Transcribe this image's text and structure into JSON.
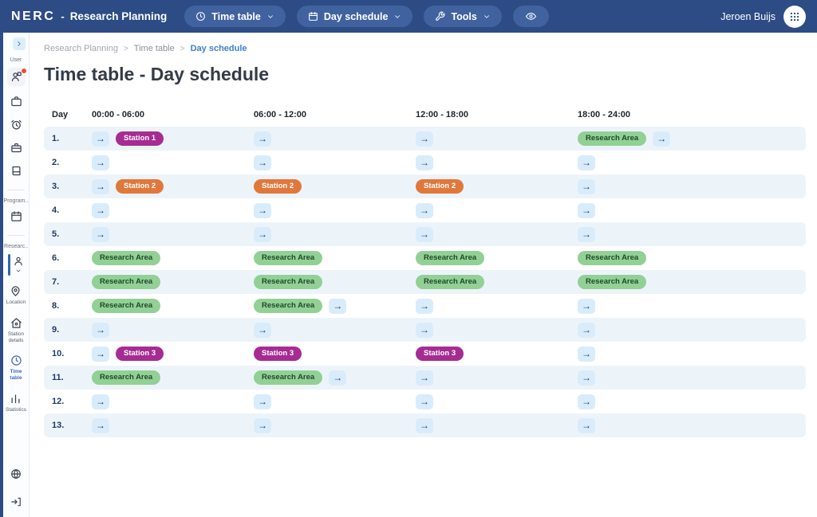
{
  "topbar": {
    "brand": "NERC",
    "brand_divider": "-",
    "app_title": "Research Planning",
    "menus": [
      {
        "label": "Time table",
        "icon": "clock"
      },
      {
        "label": "Day schedule",
        "icon": "calendar"
      },
      {
        "label": "Tools",
        "icon": "tools"
      }
    ],
    "eye_button_icon": "eye",
    "user_name": "Jeroen Buijs",
    "apps_icon": "grid"
  },
  "sidebar": {
    "collapse_icon": "chevron-right",
    "sections": [
      {
        "label": "User",
        "items": [
          {
            "icon": "user-card",
            "name": "user-planning",
            "notification": true,
            "highlight": true
          },
          {
            "icon": "briefcase",
            "name": "briefcase"
          },
          {
            "icon": "alarm",
            "name": "alarm"
          },
          {
            "icon": "kit",
            "name": "kit"
          },
          {
            "icon": "book",
            "name": "book"
          }
        ]
      },
      {
        "label": "Program..",
        "items": [
          {
            "icon": "calendar",
            "name": "program-calendar"
          }
        ]
      },
      {
        "label": "Researc..",
        "items": [
          {
            "icon": "person",
            "name": "research-selected",
            "selected": true
          },
          {
            "icon": "pin",
            "name": "location",
            "label": "Location"
          },
          {
            "icon": "home",
            "name": "station-details",
            "label": "Station details"
          },
          {
            "icon": "clock",
            "name": "time-table",
            "label": "Time table",
            "active": true
          },
          {
            "icon": "chart",
            "name": "statistics",
            "label": "Statistics"
          }
        ]
      }
    ],
    "footer": [
      {
        "icon": "globe",
        "name": "language"
      },
      {
        "icon": "logout",
        "name": "logout"
      }
    ]
  },
  "breadcrumb": [
    {
      "label": "Research Planning",
      "active": false
    },
    {
      "label": "Time table",
      "active": false
    },
    {
      "label": "Day schedule",
      "active": true
    }
  ],
  "breadcrumb_separator": ">",
  "page": {
    "title": "Time table - Day schedule"
  },
  "table": {
    "headers": [
      "Day",
      "00:00 - 06:00",
      "06:00 - 12:00",
      "12:00 - 18:00",
      "18:00 - 24:00"
    ],
    "arrow_glyph": "→",
    "badge_colors": {
      "station1": {
        "bg": "#a62c92",
        "text": "#ffffff"
      },
      "station2": {
        "bg": "#e0783c",
        "text": "#ffffff"
      },
      "station3": {
        "bg": "#a62c92",
        "text": "#ffffff"
      },
      "research": {
        "bg": "#92d096",
        "text": "#1d4a28"
      }
    },
    "rows": [
      {
        "day": "1.",
        "cells": [
          [
            {
              "t": "arrow"
            },
            {
              "t": "badge",
              "kind": "station1",
              "label": "Station 1"
            }
          ],
          [
            {
              "t": "arrow"
            }
          ],
          [
            {
              "t": "arrow"
            }
          ],
          [
            {
              "t": "badge",
              "kind": "research",
              "label": "Research Area"
            },
            {
              "t": "arrow"
            }
          ]
        ]
      },
      {
        "day": "2.",
        "cells": [
          [
            {
              "t": "arrow"
            }
          ],
          [
            {
              "t": "arrow"
            }
          ],
          [
            {
              "t": "arrow"
            }
          ],
          [
            {
              "t": "arrow"
            }
          ]
        ]
      },
      {
        "day": "3.",
        "cells": [
          [
            {
              "t": "arrow"
            },
            {
              "t": "badge",
              "kind": "station2",
              "label": "Station 2"
            }
          ],
          [
            {
              "t": "badge",
              "kind": "station2",
              "label": "Station 2"
            }
          ],
          [
            {
              "t": "badge",
              "kind": "station2",
              "label": "Station 2"
            }
          ],
          [
            {
              "t": "arrow"
            }
          ]
        ]
      },
      {
        "day": "4.",
        "cells": [
          [
            {
              "t": "arrow"
            }
          ],
          [
            {
              "t": "arrow"
            }
          ],
          [
            {
              "t": "arrow"
            }
          ],
          [
            {
              "t": "arrow"
            }
          ]
        ]
      },
      {
        "day": "5.",
        "cells": [
          [
            {
              "t": "arrow"
            }
          ],
          [
            {
              "t": "arrow"
            }
          ],
          [
            {
              "t": "arrow"
            }
          ],
          [
            {
              "t": "arrow"
            }
          ]
        ]
      },
      {
        "day": "6.",
        "cells": [
          [
            {
              "t": "badge",
              "kind": "research",
              "label": "Research Area"
            }
          ],
          [
            {
              "t": "badge",
              "kind": "research",
              "label": "Research Area"
            }
          ],
          [
            {
              "t": "badge",
              "kind": "research",
              "label": "Research Area"
            }
          ],
          [
            {
              "t": "badge",
              "kind": "research",
              "label": "Research Area"
            }
          ]
        ]
      },
      {
        "day": "7.",
        "cells": [
          [
            {
              "t": "badge",
              "kind": "research",
              "label": "Research Area"
            }
          ],
          [
            {
              "t": "badge",
              "kind": "research",
              "label": "Research Area"
            }
          ],
          [
            {
              "t": "badge",
              "kind": "research",
              "label": "Research Area"
            }
          ],
          [
            {
              "t": "badge",
              "kind": "research",
              "label": "Research Area"
            }
          ]
        ]
      },
      {
        "day": "8.",
        "cells": [
          [
            {
              "t": "badge",
              "kind": "research",
              "label": "Research Area"
            }
          ],
          [
            {
              "t": "badge",
              "kind": "research",
              "label": "Research Area"
            },
            {
              "t": "arrow"
            }
          ],
          [
            {
              "t": "arrow"
            }
          ],
          [
            {
              "t": "arrow"
            }
          ]
        ]
      },
      {
        "day": "9.",
        "cells": [
          [
            {
              "t": "arrow"
            }
          ],
          [
            {
              "t": "arrow"
            }
          ],
          [
            {
              "t": "arrow"
            }
          ],
          [
            {
              "t": "arrow"
            }
          ]
        ]
      },
      {
        "day": "10.",
        "cells": [
          [
            {
              "t": "arrow"
            },
            {
              "t": "badge",
              "kind": "station3",
              "label": "Station 3"
            }
          ],
          [
            {
              "t": "badge",
              "kind": "station3",
              "label": "Station 3"
            }
          ],
          [
            {
              "t": "badge",
              "kind": "station3",
              "label": "Station 3"
            }
          ],
          [
            {
              "t": "arrow"
            }
          ]
        ]
      },
      {
        "day": "11.",
        "cells": [
          [
            {
              "t": "badge",
              "kind": "research",
              "label": "Research Area"
            }
          ],
          [
            {
              "t": "badge",
              "kind": "research",
              "label": "Research Area"
            },
            {
              "t": "arrow"
            }
          ],
          [
            {
              "t": "arrow"
            }
          ],
          [
            {
              "t": "arrow"
            }
          ]
        ]
      },
      {
        "day": "12.",
        "cells": [
          [
            {
              "t": "arrow"
            }
          ],
          [
            {
              "t": "arrow"
            }
          ],
          [
            {
              "t": "arrow"
            }
          ],
          [
            {
              "t": "arrow"
            }
          ]
        ]
      },
      {
        "day": "13.",
        "cells": [
          [
            {
              "t": "arrow"
            }
          ],
          [
            {
              "t": "arrow"
            }
          ],
          [
            {
              "t": "arrow"
            }
          ],
          [
            {
              "t": "arrow"
            }
          ]
        ]
      }
    ]
  }
}
